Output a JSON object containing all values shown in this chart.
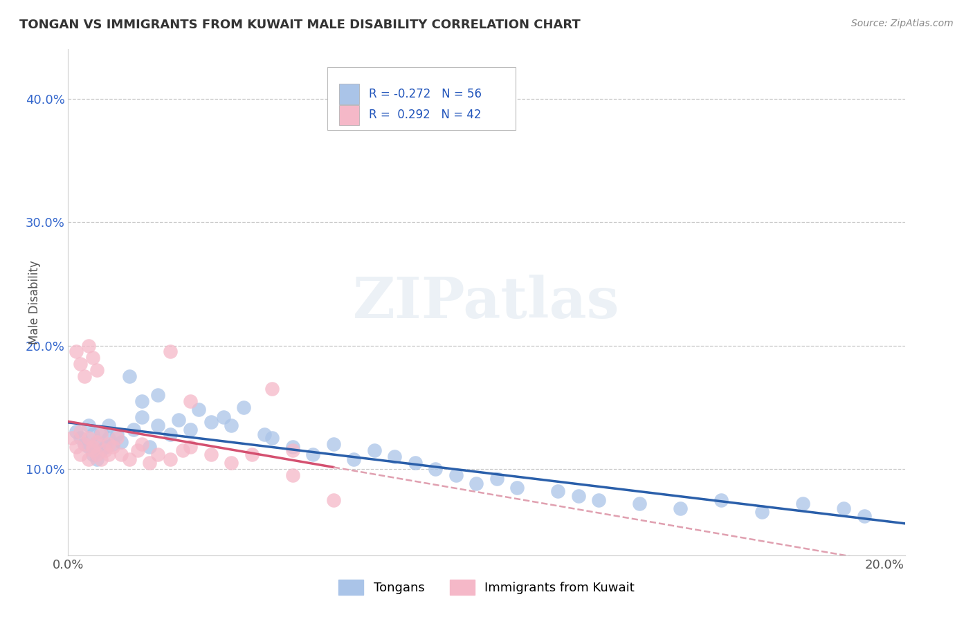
{
  "title": "TONGAN VS IMMIGRANTS FROM KUWAIT MALE DISABILITY CORRELATION CHART",
  "source": "Source: ZipAtlas.com",
  "ylabel": "Male Disability",
  "xlim": [
    0.0,
    0.205
  ],
  "ylim": [
    0.03,
    0.44
  ],
  "yticks": [
    0.1,
    0.2,
    0.3,
    0.4
  ],
  "ytick_labels": [
    "10.0%",
    "20.0%",
    "30.0%",
    "40.0%"
  ],
  "xticks": [
    0.0,
    0.05,
    0.1,
    0.15,
    0.2
  ],
  "xtick_labels": [
    "0.0%",
    "",
    "",
    "",
    "20.0%"
  ],
  "legend_labels": [
    "Tongans",
    "Immigrants from Kuwait"
  ],
  "tongan_color": "#aac4e8",
  "kuwait_color": "#f5b8c8",
  "tongan_line_color": "#2a5faa",
  "kuwait_line_color": "#d45070",
  "kuwait_dash_color": "#e0a0b0",
  "R_tongan": -0.272,
  "N_tongan": 56,
  "R_kuwait": 0.292,
  "N_kuwait": 42,
  "background_color": "#ffffff",
  "grid_color": "#c8c8c8",
  "tongan_x": [
    0.002,
    0.003,
    0.004,
    0.005,
    0.005,
    0.006,
    0.006,
    0.007,
    0.007,
    0.008,
    0.008,
    0.009,
    0.01,
    0.01,
    0.011,
    0.012,
    0.013,
    0.015,
    0.016,
    0.018,
    0.02,
    0.022,
    0.025,
    0.027,
    0.03,
    0.032,
    0.035,
    0.038,
    0.04,
    0.043,
    0.048,
    0.05,
    0.055,
    0.06,
    0.065,
    0.07,
    0.075,
    0.08,
    0.085,
    0.09,
    0.095,
    0.1,
    0.105,
    0.11,
    0.12,
    0.125,
    0.13,
    0.14,
    0.15,
    0.16,
    0.17,
    0.18,
    0.19,
    0.195,
    0.018,
    0.022
  ],
  "tongan_y": [
    0.13,
    0.125,
    0.12,
    0.118,
    0.135,
    0.112,
    0.128,
    0.108,
    0.122,
    0.115,
    0.13,
    0.118,
    0.125,
    0.135,
    0.12,
    0.128,
    0.122,
    0.175,
    0.132,
    0.142,
    0.118,
    0.135,
    0.128,
    0.14,
    0.132,
    0.148,
    0.138,
    0.142,
    0.135,
    0.15,
    0.128,
    0.125,
    0.118,
    0.112,
    0.12,
    0.108,
    0.115,
    0.11,
    0.105,
    0.1,
    0.095,
    0.088,
    0.092,
    0.085,
    0.082,
    0.078,
    0.075,
    0.072,
    0.068,
    0.075,
    0.065,
    0.072,
    0.068,
    0.062,
    0.155,
    0.16
  ],
  "kuwait_x": [
    0.001,
    0.002,
    0.003,
    0.003,
    0.004,
    0.005,
    0.005,
    0.006,
    0.006,
    0.007,
    0.007,
    0.008,
    0.008,
    0.009,
    0.01,
    0.01,
    0.011,
    0.012,
    0.013,
    0.015,
    0.017,
    0.018,
    0.02,
    0.022,
    0.025,
    0.028,
    0.03,
    0.035,
    0.04,
    0.045,
    0.05,
    0.055,
    0.002,
    0.003,
    0.004,
    0.005,
    0.006,
    0.007,
    0.025,
    0.03,
    0.055,
    0.065
  ],
  "kuwait_y": [
    0.125,
    0.118,
    0.112,
    0.13,
    0.12,
    0.108,
    0.125,
    0.115,
    0.118,
    0.112,
    0.122,
    0.108,
    0.128,
    0.115,
    0.12,
    0.112,
    0.118,
    0.125,
    0.112,
    0.108,
    0.115,
    0.12,
    0.105,
    0.112,
    0.108,
    0.115,
    0.118,
    0.112,
    0.105,
    0.112,
    0.165,
    0.115,
    0.195,
    0.185,
    0.175,
    0.2,
    0.19,
    0.18,
    0.195,
    0.155,
    0.095,
    0.075
  ]
}
